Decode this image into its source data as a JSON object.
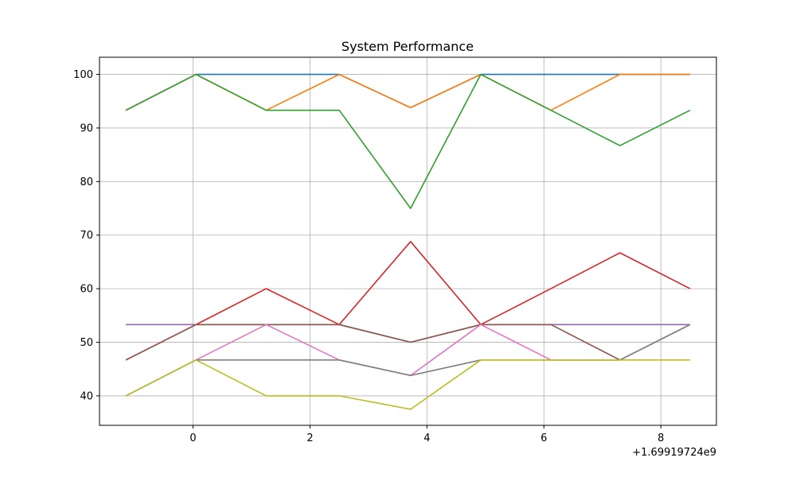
{
  "chart_data": {
    "type": "line",
    "title": "System Performance",
    "xlabel": "",
    "ylabel": "",
    "x_offset_label": "+1.69919724e9",
    "xlim": [
      -1.6,
      8.95
    ],
    "ylim": [
      34.5,
      103.2
    ],
    "x_ticks": [
      0,
      2,
      4,
      6,
      8
    ],
    "x_tick_labels": [
      "0",
      "2",
      "4",
      "6",
      "8"
    ],
    "y_ticks": [
      40,
      50,
      60,
      70,
      80,
      90,
      100
    ],
    "y_tick_labels": [
      "40",
      "50",
      "60",
      "70",
      "80",
      "90",
      "100"
    ],
    "grid": true,
    "x": [
      -1.15,
      0.05,
      1.25,
      2.5,
      3.72,
      4.92,
      6.12,
      7.3,
      8.5
    ],
    "series": [
      {
        "color": "#1f77b4",
        "values": [
          93.3,
          100,
          100,
          100,
          93.8,
          100,
          100,
          100,
          100
        ]
      },
      {
        "color": "#ff7f0e",
        "values": [
          93.3,
          100,
          93.3,
          100,
          93.8,
          100,
          93.3,
          100,
          100
        ]
      },
      {
        "color": "#2ca02c",
        "values": [
          93.3,
          100,
          93.3,
          93.3,
          75.0,
          100,
          93.3,
          86.7,
          93.3
        ]
      },
      {
        "color": "#d62728",
        "values": [
          46.7,
          53.3,
          60.0,
          53.3,
          68.8,
          53.3,
          60.0,
          66.7,
          60.0
        ]
      },
      {
        "color": "#9467bd",
        "values": [
          53.3,
          53.3,
          53.3,
          53.3,
          50.0,
          53.3,
          53.3,
          53.3,
          53.3
        ]
      },
      {
        "color": "#8c564b",
        "values": [
          46.7,
          53.3,
          53.3,
          53.3,
          50.0,
          53.3,
          53.3,
          46.7,
          53.3
        ]
      },
      {
        "color": "#e377c2",
        "values": [
          40.0,
          46.7,
          53.3,
          46.7,
          43.8,
          53.3,
          46.7,
          46.7,
          53.3
        ]
      },
      {
        "color": "#7f7f7f",
        "values": [
          40.0,
          46.7,
          46.7,
          46.7,
          43.8,
          46.7,
          46.7,
          46.7,
          53.3
        ]
      },
      {
        "color": "#bcbd22",
        "values": [
          40.0,
          46.7,
          40.0,
          40.0,
          37.5,
          46.7,
          46.7,
          46.7,
          46.7
        ]
      }
    ]
  }
}
